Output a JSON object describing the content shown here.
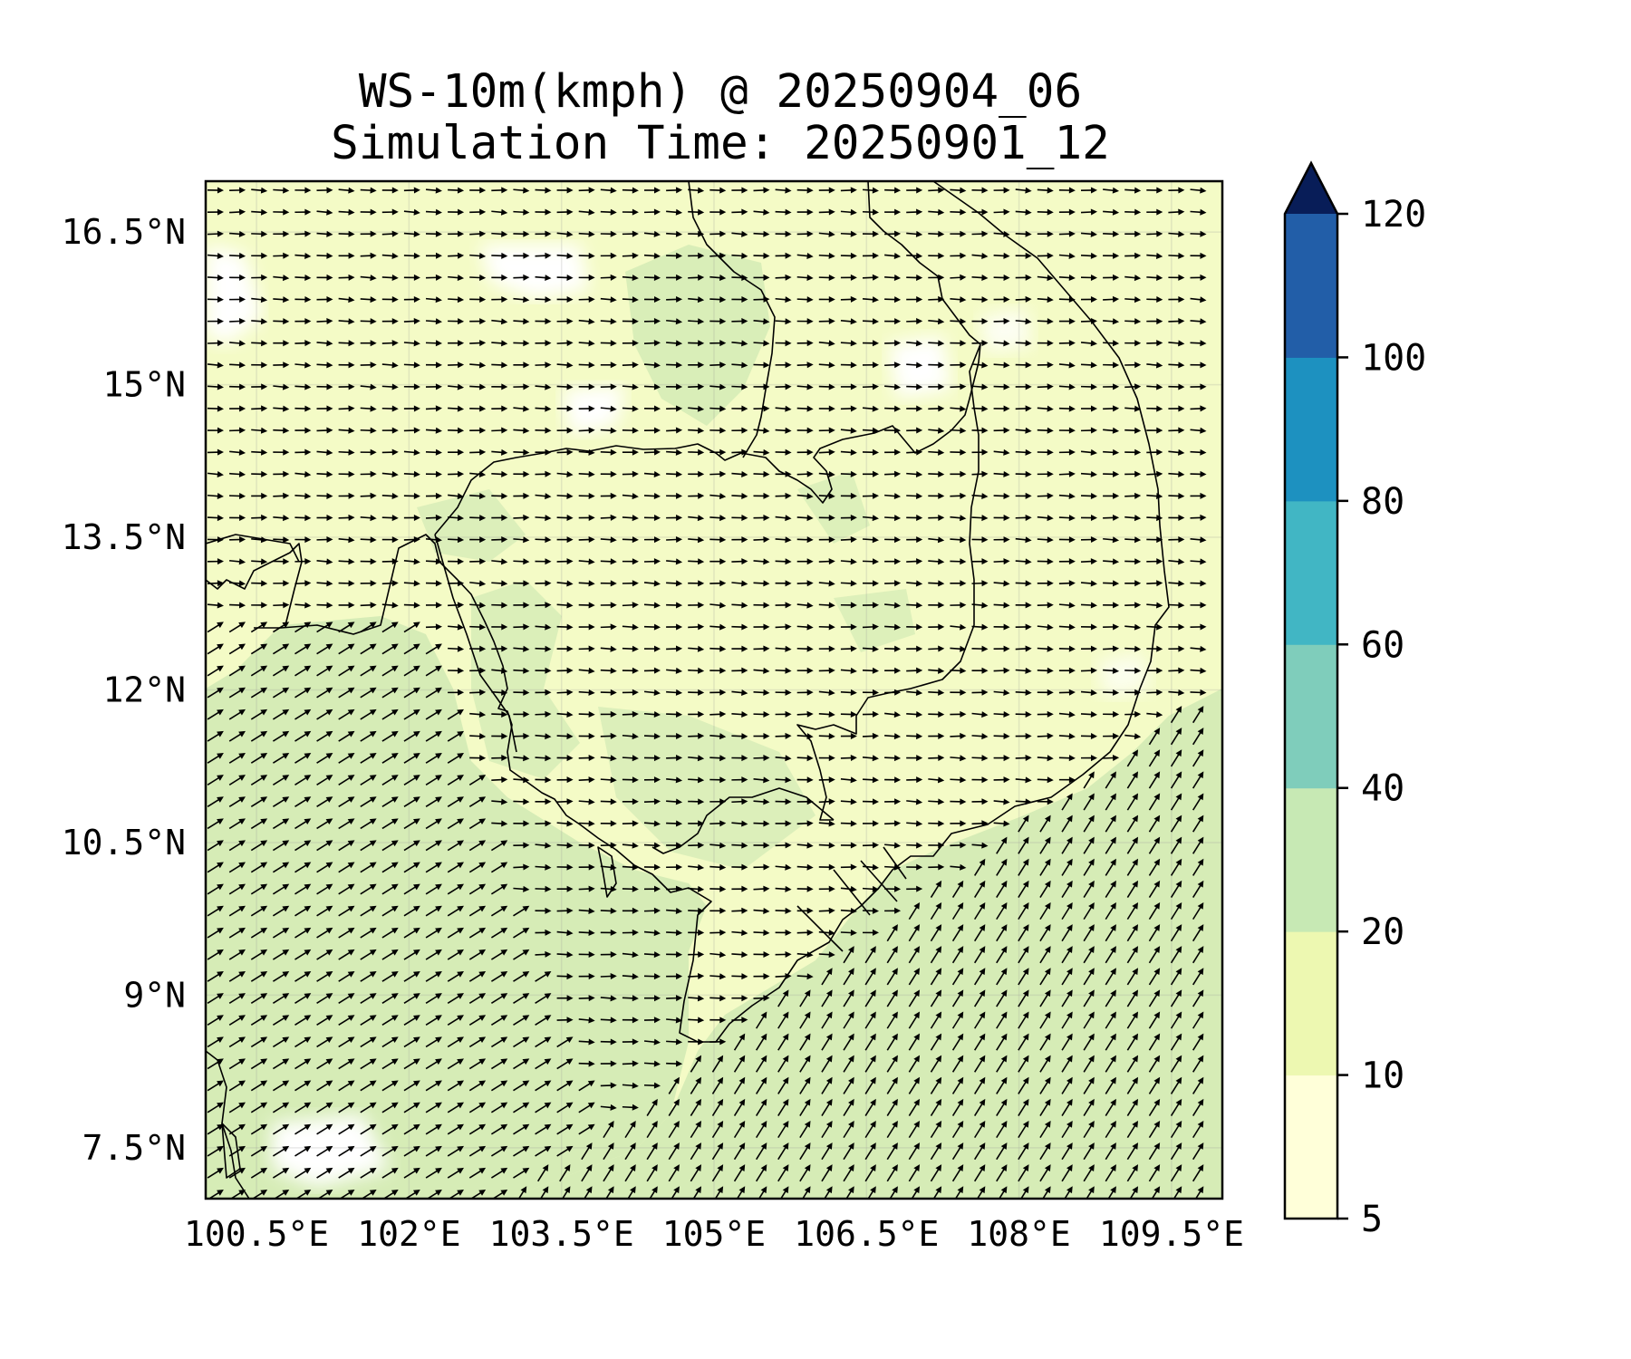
{
  "title": {
    "line1": "WS-10m(kmph) @ 20250904_06",
    "line2": "Simulation Time: 20250901_12"
  },
  "map": {
    "lon_range": [
      100.0,
      110.0
    ],
    "lat_range": [
      7.0,
      17.0
    ],
    "x_ticks": [
      {
        "value": 100.5,
        "label": "100.5°E"
      },
      {
        "value": 102.0,
        "label": "102°E"
      },
      {
        "value": 103.5,
        "label": "103.5°E"
      },
      {
        "value": 105.0,
        "label": "105°E"
      },
      {
        "value": 106.5,
        "label": "106.5°E"
      },
      {
        "value": 108.0,
        "label": "108°E"
      },
      {
        "value": 109.5,
        "label": "109.5°E"
      }
    ],
    "y_ticks": [
      {
        "value": 16.5,
        "label": "16.5°N"
      },
      {
        "value": 15.0,
        "label": "15°N"
      },
      {
        "value": 13.5,
        "label": "13.5°N"
      },
      {
        "value": 12.0,
        "label": "12°N"
      },
      {
        "value": 10.5,
        "label": "10.5°N"
      },
      {
        "value": 9.0,
        "label": "9°N"
      },
      {
        "value": 7.5,
        "label": "7.5°N"
      }
    ],
    "gridlines": true,
    "quiver": true
  },
  "colorbar": {
    "levels": [
      {
        "value": 5,
        "label": "5"
      },
      {
        "value": 10,
        "label": "10"
      },
      {
        "value": 20,
        "label": "20"
      },
      {
        "value": 40,
        "label": "40"
      },
      {
        "value": 60,
        "label": "60"
      },
      {
        "value": 80,
        "label": "80"
      },
      {
        "value": 100,
        "label": "100"
      },
      {
        "value": 120,
        "label": "120"
      }
    ],
    "colors": [
      "#ffffd9",
      "#edf8b1",
      "#c7e9b4",
      "#7fcdbb",
      "#41b6c4",
      "#1d91c0",
      "#225ea8",
      "#253494"
    ],
    "extend_max_color": "#081d58",
    "extend": "max"
  },
  "style": {
    "land_fill": "#f4fbc6",
    "sea_fill": "#d6ecb6",
    "calm_fill": "#ffffff",
    "arrow_color": "#000000"
  }
}
